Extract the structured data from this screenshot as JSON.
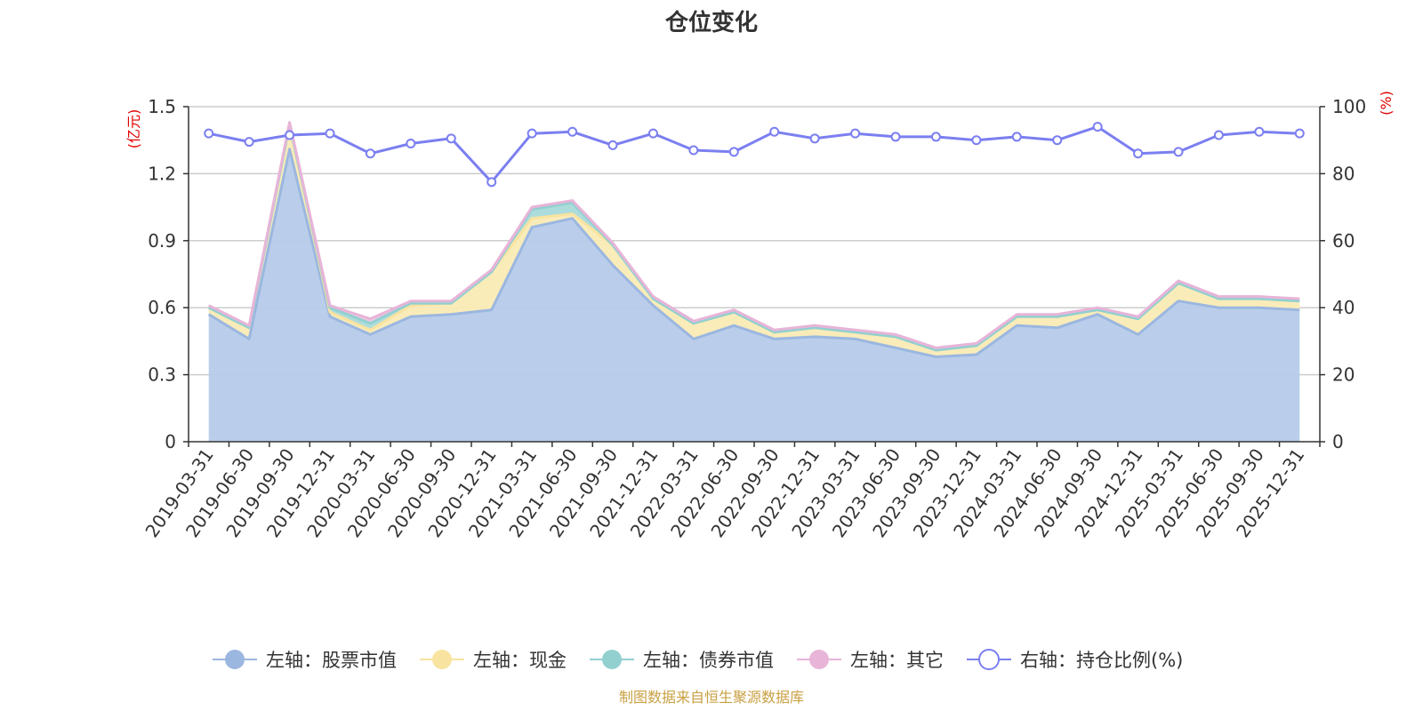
{
  "chart_data": {
    "type": "area",
    "title": "仓位变化",
    "left_axis_unit": "(亿元)",
    "right_axis_unit": "(%)",
    "left_ylim": [
      0,
      1.5
    ],
    "left_ticks": [
      "0",
      "0.3",
      "0.6",
      "0.9",
      "1.2",
      "1.5"
    ],
    "right_ylim": [
      0,
      100
    ],
    "right_ticks": [
      "0",
      "20",
      "40",
      "60",
      "80",
      "100"
    ],
    "categories": [
      "2019-03-31",
      "2019-06-30",
      "2019-09-30",
      "2019-12-31",
      "2020-03-31",
      "2020-06-30",
      "2020-09-30",
      "2020-12-31",
      "2021-03-31",
      "2021-06-30",
      "2021-09-30",
      "2021-12-31",
      "2022-03-31",
      "2022-06-30",
      "2022-09-30",
      "2022-12-31",
      "2023-03-31",
      "2023-06-30",
      "2023-09-30",
      "2023-12-31",
      "2024-03-31",
      "2024-06-30",
      "2024-09-30",
      "2024-12-31",
      "2025-03-31",
      "2025-06-30",
      "2025-09-30",
      "2025-12-31"
    ],
    "series": [
      {
        "name": "左轴：股票市值",
        "axis": "left",
        "kind": "area",
        "color": "#9bb7e0",
        "fill": "#b6cbea",
        "values": [
          0.57,
          0.46,
          1.31,
          0.56,
          0.48,
          0.56,
          0.57,
          0.59,
          0.96,
          1.0,
          0.79,
          0.61,
          0.46,
          0.52,
          0.46,
          0.47,
          0.46,
          0.42,
          0.38,
          0.39,
          0.52,
          0.51,
          0.57,
          0.48,
          0.63,
          0.6,
          0.6,
          0.59
        ]
      },
      {
        "name": "左轴：现金",
        "axis": "left",
        "kind": "area",
        "color": "#f8e3a0",
        "fill": "#faebb5",
        "values": [
          0.03,
          0.05,
          0.11,
          0.02,
          0.02,
          0.05,
          0.05,
          0.17,
          0.04,
          0.02,
          0.09,
          0.03,
          0.07,
          0.06,
          0.03,
          0.04,
          0.03,
          0.05,
          0.03,
          0.04,
          0.04,
          0.05,
          0.02,
          0.07,
          0.08,
          0.04,
          0.04,
          0.04
        ]
      },
      {
        "name": "左轴：债券市值",
        "axis": "left",
        "kind": "area",
        "color": "#92d0d0",
        "fill": "#a9dada",
        "values": [
          0,
          0,
          0,
          0.02,
          0.03,
          0.01,
          0,
          0,
          0.04,
          0.05,
          0,
          0,
          0,
          0,
          0,
          0,
          0,
          0,
          0,
          0,
          0,
          0,
          0,
          0,
          0,
          0,
          0,
          0
        ]
      },
      {
        "name": "左轴：其它",
        "axis": "left",
        "kind": "area",
        "color": "#e8b4d8",
        "fill": "#efc6e3",
        "values": [
          0.01,
          0.01,
          0.01,
          0.01,
          0.02,
          0.01,
          0.01,
          0.01,
          0.01,
          0.01,
          0.01,
          0.01,
          0.01,
          0.01,
          0.01,
          0.01,
          0.01,
          0.01,
          0.01,
          0.01,
          0.01,
          0.01,
          0.01,
          0.01,
          0.01,
          0.01,
          0.01,
          0.01
        ]
      },
      {
        "name": "右轴：持仓比例(%)",
        "axis": "right",
        "kind": "line",
        "color": "#7b7ff0",
        "values": [
          92,
          89.5,
          91.5,
          92,
          86,
          89,
          90.5,
          77.5,
          92,
          92.5,
          88.5,
          92,
          87,
          86.5,
          92.5,
          90.5,
          92,
          91,
          91,
          90,
          91,
          90,
          94,
          86,
          86.5,
          91.5,
          92.5,
          92
        ]
      }
    ],
    "grid": true,
    "legend_position": "bottom-center"
  },
  "footer": {
    "source": "制图数据来自恒生聚源数据库"
  }
}
